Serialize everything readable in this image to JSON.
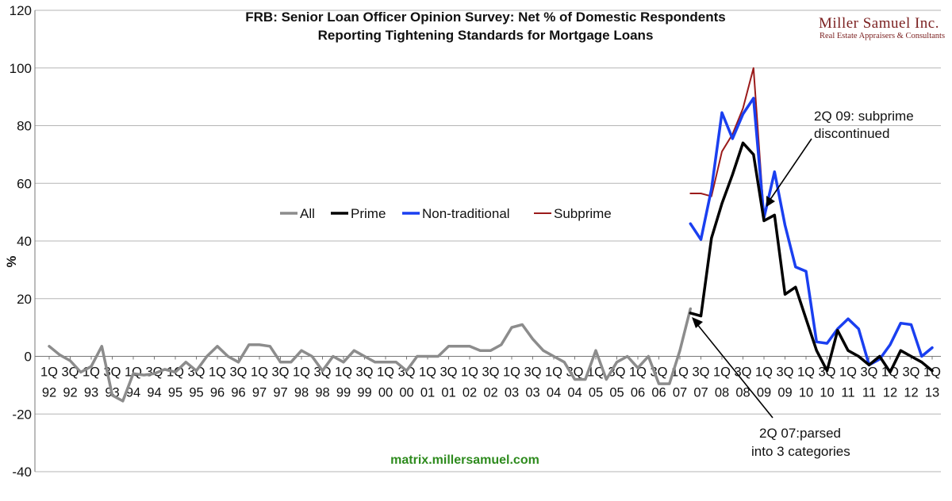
{
  "brand": {
    "name": "Miller Samuel Inc.",
    "tagline": "Real Estate Appraisers & Consultants"
  },
  "source_text": "matrix.millersamuel.com",
  "annotations": [
    {
      "id": "subprime",
      "lines": [
        "2Q 09: subprime",
        "discontinued"
      ]
    },
    {
      "id": "parsed",
      "lines": [
        "2Q 07:parsed",
        "into 3 categories"
      ]
    }
  ],
  "chart_data": {
    "type": "line",
    "title": [
      "FRB: Senior Loan Officer Opinion Survey: Net % of Domestic Respondents",
      "Reporting Tightening Standards for Mortgage Loans"
    ],
    "ylabel": "%",
    "ylim": [
      -40,
      120
    ],
    "yticks": [
      -40,
      -20,
      0,
      20,
      40,
      60,
      80,
      100,
      120
    ],
    "grid": true,
    "legend_position": "middle-left",
    "x_tick_labels": [
      [
        "1Q",
        "92"
      ],
      [
        "3Q",
        "92"
      ],
      [
        "1Q",
        "93"
      ],
      [
        "3Q",
        "93"
      ],
      [
        "1Q",
        "94"
      ],
      [
        "3Q",
        "94"
      ],
      [
        "1Q",
        "95"
      ],
      [
        "3Q",
        "95"
      ],
      [
        "1Q",
        "96"
      ],
      [
        "3Q",
        "96"
      ],
      [
        "1Q",
        "97"
      ],
      [
        "3Q",
        "97"
      ],
      [
        "1Q",
        "98"
      ],
      [
        "3Q",
        "98"
      ],
      [
        "1Q",
        "99"
      ],
      [
        "3Q",
        "99"
      ],
      [
        "1Q",
        "00"
      ],
      [
        "3Q",
        "00"
      ],
      [
        "1Q",
        "01"
      ],
      [
        "3Q",
        "01"
      ],
      [
        "1Q",
        "02"
      ],
      [
        "3Q",
        "02"
      ],
      [
        "1Q",
        "03"
      ],
      [
        "3Q",
        "03"
      ],
      [
        "1Q",
        "04"
      ],
      [
        "3Q",
        "04"
      ],
      [
        "1Q",
        "05"
      ],
      [
        "3Q",
        "05"
      ],
      [
        "1Q",
        "06"
      ],
      [
        "3Q",
        "06"
      ],
      [
        "1Q",
        "07"
      ],
      [
        "3Q",
        "07"
      ],
      [
        "1Q",
        "08"
      ],
      [
        "3Q",
        "08"
      ],
      [
        "1Q",
        "09"
      ],
      [
        "3Q",
        "09"
      ],
      [
        "1Q",
        "10"
      ],
      [
        "3Q",
        "10"
      ],
      [
        "1Q",
        "11"
      ],
      [
        "3Q",
        "11"
      ],
      [
        "1Q",
        "12"
      ],
      [
        "3Q",
        "12"
      ],
      [
        "1Q",
        "13"
      ]
    ],
    "series": [
      {
        "name": "All",
        "color": "#8c8c8c",
        "start_index": 0,
        "values": [
          3.5,
          0.5,
          -1.5,
          -5.5,
          -3.5,
          3.5,
          -13.5,
          -15.5,
          -6,
          -6.5,
          -6,
          -4.5,
          -5.5,
          -2,
          -5,
          0,
          3.5,
          0,
          -2,
          4,
          4,
          3.5,
          -2,
          -2,
          2,
          0,
          -5,
          0,
          -2,
          2,
          0,
          -2,
          -2,
          -2,
          -5,
          0,
          0,
          0,
          3.5,
          3.5,
          3.5,
          2,
          2,
          4,
          10,
          11,
          6,
          2,
          0,
          -2,
          -8,
          -8,
          2,
          -8,
          -2,
          0,
          -4,
          0,
          -9.5,
          -9.5,
          2,
          16.5
        ]
      },
      {
        "name": "Prime",
        "color": "#000000",
        "start_index": 61,
        "values": [
          15,
          14,
          41,
          53,
          63,
          74,
          70,
          47,
          49,
          21.5,
          24,
          13,
          2,
          -5,
          9,
          2,
          0,
          -3,
          0,
          -5.5,
          2,
          0,
          -2,
          -5
        ]
      },
      {
        "name": "Non-traditional",
        "color": "#1a3ff0",
        "start_index": 61,
        "values": [
          46,
          40.5,
          58,
          84.5,
          75.5,
          84,
          89.5,
          48,
          64,
          45.5,
          31,
          29.5,
          5,
          4.5,
          9.5,
          13,
          9.5,
          -3,
          -1,
          4,
          11.5,
          11,
          0,
          3
        ]
      },
      {
        "name": "Subprime",
        "color": "#9b1b1b",
        "start_index": 61,
        "values": [
          56.5,
          56.5,
          55.5,
          71,
          77,
          86,
          100,
          48.5
        ]
      }
    ]
  }
}
